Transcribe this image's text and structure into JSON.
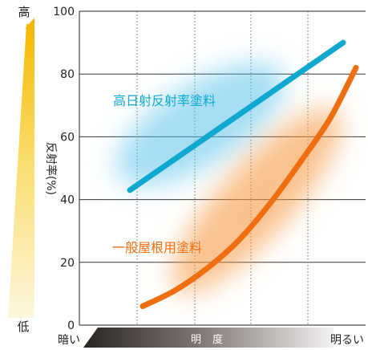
{
  "chart_data": {
    "type": "line",
    "ylabel": "反射率(%)",
    "xlabel": "明度",
    "x_left_label": "暗い",
    "x_right_label": "明るい",
    "y_top_label": "高",
    "y_bottom_label": "低",
    "ylim": [
      0,
      100
    ],
    "yticks": [
      0,
      20,
      40,
      60,
      80,
      100
    ],
    "xlim": [
      0,
      1
    ],
    "grid": true,
    "series": [
      {
        "name": "高日射反射率塗料",
        "color": "#10a8cf",
        "x": [
          0.0,
          1.0
        ],
        "y": [
          43,
          90
        ]
      },
      {
        "name": "一般屋根用塗料",
        "color": "#ee6e10",
        "x": [
          0.0,
          0.15,
          0.3,
          0.45,
          0.6,
          0.75,
          0.88,
          1.0
        ],
        "y": [
          6,
          11,
          18,
          27,
          39,
          53,
          66,
          82
        ]
      }
    ]
  },
  "colors": {
    "yellow_gradient_top": "#f7c100",
    "yellow_gradient_bottom": "#fbf0c4",
    "axis_dark": "#2d2926"
  }
}
